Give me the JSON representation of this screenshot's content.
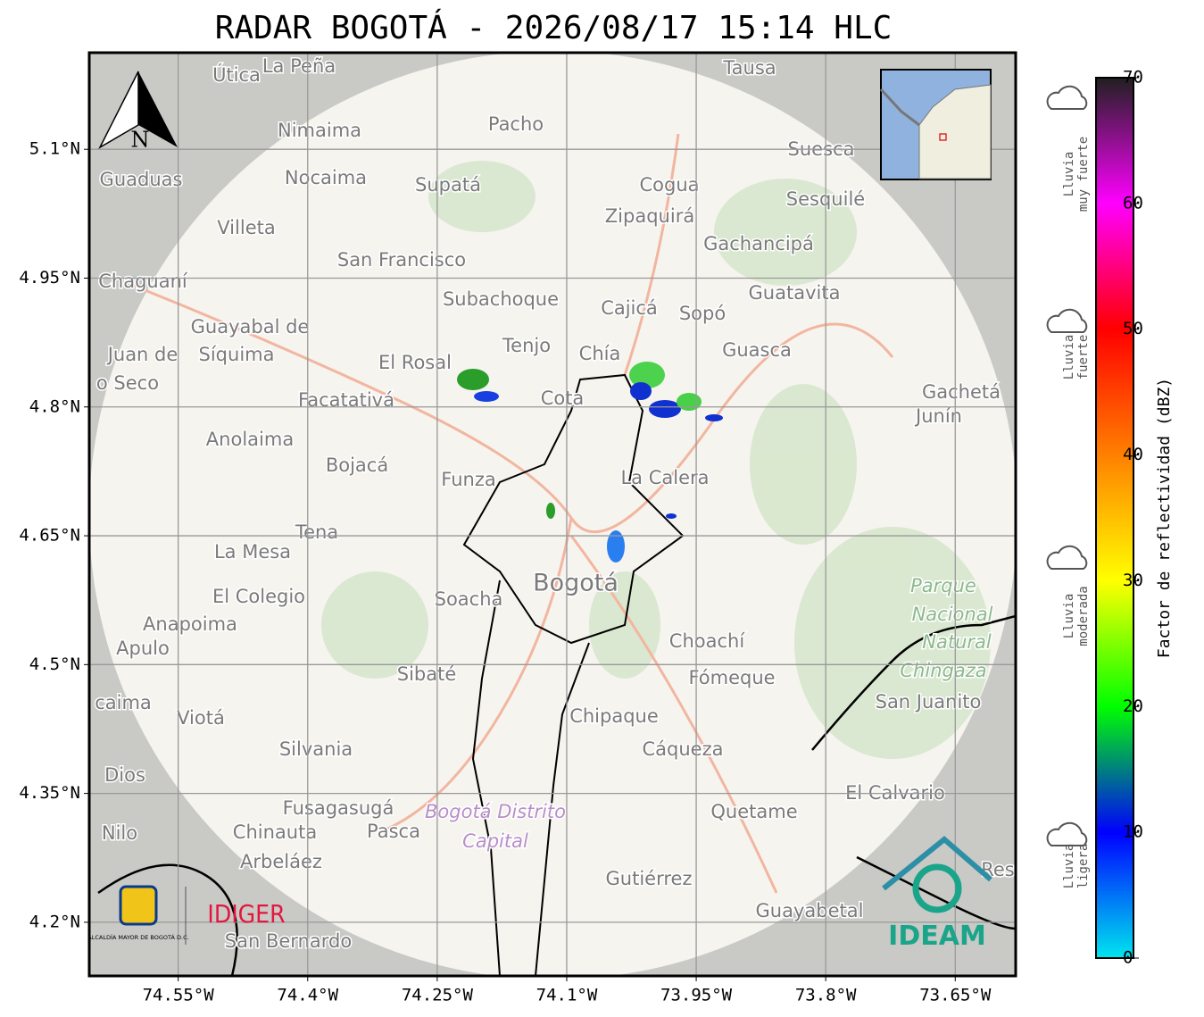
{
  "header": {
    "title": "RADAR BOGOTÁ - 2026/08/17 15:14 HLC"
  },
  "map": {
    "xlim": [
      -74.653,
      -73.58
    ],
    "ylim": [
      4.1375,
      5.2125
    ],
    "xticks": [
      {
        "value": -74.55,
        "label": "74.55°W"
      },
      {
        "value": -74.4,
        "label": "74.4°W"
      },
      {
        "value": -74.25,
        "label": "74.25°W"
      },
      {
        "value": -74.1,
        "label": "74.1°W"
      },
      {
        "value": -73.95,
        "label": "73.95°W"
      },
      {
        "value": -73.8,
        "label": "73.8°W"
      },
      {
        "value": -73.65,
        "label": "73.65°W"
      }
    ],
    "yticks": [
      {
        "value": 5.1,
        "label": "5.1°N"
      },
      {
        "value": 4.95,
        "label": "4.95°N"
      },
      {
        "value": 4.8,
        "label": "4.8°N"
      },
      {
        "value": 4.65,
        "label": "4.65°N"
      },
      {
        "value": 4.5,
        "label": "4.5°N"
      },
      {
        "value": 4.35,
        "label": "4.35°N"
      },
      {
        "value": 4.2,
        "label": "4.2°N"
      }
    ],
    "north": "N",
    "places": [
      "Útica",
      "La Peña",
      "Tausa",
      "Pacho",
      "Nimaima",
      "Suesca",
      "Guaduas",
      "Nocaima",
      "Supatá",
      "Cogua",
      "Sesquilé",
      "Zipaquirá",
      "Villeta",
      "Gachancipá",
      "San Francisco",
      "Chaguaní",
      "Guatavita",
      "Subachoque",
      "Cajicá",
      "Sopó",
      "Guayabal de",
      "Tenjo",
      "Chía",
      "Guasca",
      "Juan de",
      "Síquima",
      "El Rosal",
      "o Seco",
      "Cota",
      "Gachetá",
      "Facatativá",
      "Junín",
      "Anolaima",
      "Bojacá",
      "La Calera",
      "Funza",
      "Tena",
      "La Mesa",
      "Bogotá",
      "Parque",
      "Soacha",
      "El Colegio",
      "Nacional",
      "Anapoima",
      "Apulo",
      "Natural",
      "Choachí",
      "Chingaza",
      "Sibaté",
      "Fómeque",
      "San Juanito",
      "caima",
      "Viotá",
      "Chipaque",
      "Silvania",
      "Cáqueza",
      "Dios",
      "El Calvario",
      "Fusagasugá",
      "Bogotá Distrito",
      "Quetame",
      "Nilo",
      "Chinauta",
      "Pasca",
      "Capital",
      "Arbeláez",
      "Res",
      "Gutiérrez",
      "Guayabetal",
      "San Bernardo"
    ],
    "logos": {
      "alcaldia": "ALCALDÍA MAYOR DE BOGOTÁ D.C.",
      "idiger": "IDIGER",
      "ideam": "IDEAM"
    }
  },
  "colorbar": {
    "label": "Factor de reflectividad (dBZ)",
    "lim": [
      0,
      70
    ],
    "ticks": [
      0,
      10,
      20,
      30,
      40,
      50,
      60,
      70
    ],
    "colors": [
      "#00e5ee",
      "#0000ff",
      "#00ff00",
      "#ffff00",
      "#ff8000",
      "#ff0000",
      "#ff00ff",
      "#202020"
    ]
  },
  "legend": [
    [
      "Lluvia",
      "muy fuerte"
    ],
    [
      "Lluvia",
      "fuerte"
    ],
    [
      "Lluvia",
      "moderada"
    ],
    [
      "Lluvia",
      "ligera"
    ]
  ]
}
